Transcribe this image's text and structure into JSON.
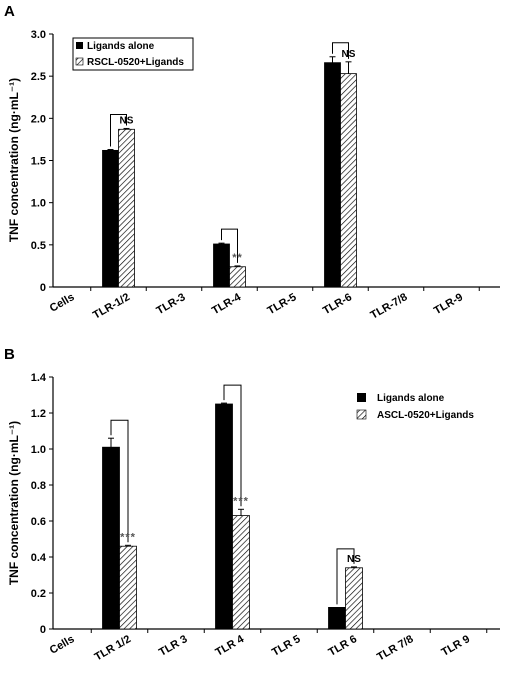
{
  "chart_data": [
    {
      "type": "bar",
      "panel_label": "A",
      "ylabel": "TNF concentration (ng·mL⁻¹)",
      "ylim": [
        0,
        3.0
      ],
      "yticks": [
        "0",
        "0.5",
        "1.0",
        "1.5",
        "2.0",
        "2.5",
        "3.0"
      ],
      "categories": [
        "Cells",
        "TLR-1/2",
        "TLR-3",
        "TLR-4",
        "TLR-5",
        "TLR-6",
        "TLR-7/8",
        "TLR-9"
      ],
      "series": [
        {
          "name": "Ligands alone",
          "pattern": "solid",
          "values": [
            0,
            1.62,
            0,
            0.51,
            0,
            2.66,
            0,
            0
          ],
          "errors": [
            0,
            0.01,
            0,
            0.01,
            0,
            0.07,
            0,
            0
          ]
        },
        {
          "name": "RSCL-0520+Ligands",
          "pattern": "hatched",
          "values": [
            0,
            1.87,
            0,
            0.24,
            0,
            2.53,
            0,
            0
          ],
          "errors": [
            0,
            0.01,
            0,
            0.01,
            0,
            0.14,
            0,
            0
          ]
        }
      ],
      "significance": [
        {
          "category": "TLR-1/2",
          "label": "NS"
        },
        {
          "category": "TLR-4",
          "label": "**"
        },
        {
          "category": "TLR-6",
          "label": "NS"
        }
      ],
      "legend_position": "top-left",
      "grid": false
    },
    {
      "type": "bar",
      "panel_label": "B",
      "ylabel": "TNF concentration (ng·mL⁻¹)",
      "ylim": [
        0,
        1.4
      ],
      "yticks": [
        "0",
        "0.2",
        "0.4",
        "0.6",
        "0.8",
        "1.0",
        "1.2",
        "1.4"
      ],
      "categories": [
        "Cells",
        "TLR 1/2",
        "TLR 3",
        "TLR 4",
        "TLR 5",
        "TLR 6",
        "TLR 7/8",
        "TLR 9"
      ],
      "series": [
        {
          "name": "Ligands alone",
          "pattern": "solid",
          "values": [
            0,
            1.01,
            0,
            1.25,
            0,
            0.12,
            0,
            0
          ],
          "errors": [
            0,
            0.05,
            0,
            0.005,
            0,
            0,
            0,
            0
          ]
        },
        {
          "name": "ASCL-0520+Ligands",
          "pattern": "hatched",
          "values": [
            0,
            0.46,
            0,
            0.63,
            0,
            0.34,
            0,
            0
          ],
          "errors": [
            0,
            0.005,
            0,
            0.035,
            0,
            0.005,
            0,
            0
          ]
        }
      ],
      "significance": [
        {
          "category": "TLR 1/2",
          "label": "***"
        },
        {
          "category": "TLR 4",
          "label": "***"
        },
        {
          "category": "TLR 6",
          "label": "NS"
        }
      ],
      "legend_position": "top-right",
      "grid": false
    }
  ]
}
